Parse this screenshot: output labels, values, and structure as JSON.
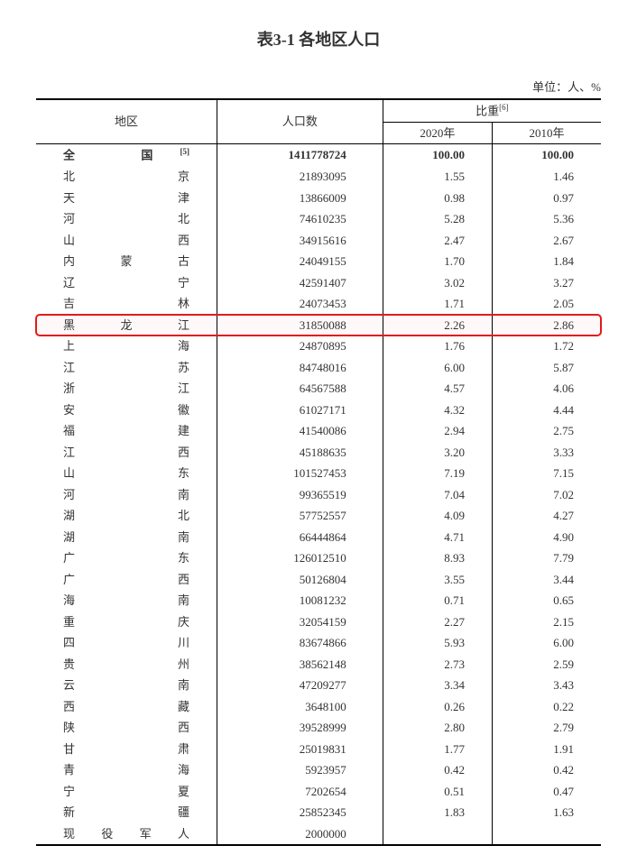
{
  "title": "表3-1 各地区人口",
  "unit_label": "单位：人、%",
  "headers": {
    "region": "地区",
    "population": "人口数",
    "proportion": "比重",
    "proportion_sup": "[6]",
    "year2020": "2020年",
    "year2010": "2010年"
  },
  "national": {
    "region": "全　国",
    "region_sup": "[5]",
    "population": "1411778724",
    "p2020": "100.00",
    "p2010": "100.00"
  },
  "highlight_region": "黑龙江",
  "rows": [
    {
      "region": "北　京",
      "population": "21893095",
      "p2020": "1.55",
      "p2010": "1.46"
    },
    {
      "region": "天　津",
      "population": "13866009",
      "p2020": "0.98",
      "p2010": "0.97"
    },
    {
      "region": "河　北",
      "population": "74610235",
      "p2020": "5.28",
      "p2010": "5.36"
    },
    {
      "region": "山　西",
      "population": "34915616",
      "p2020": "2.47",
      "p2010": "2.67"
    },
    {
      "region": "内蒙古",
      "population": "24049155",
      "p2020": "1.70",
      "p2010": "1.84"
    },
    {
      "region": "辽　宁",
      "population": "42591407",
      "p2020": "3.02",
      "p2010": "3.27"
    },
    {
      "region": "吉　林",
      "population": "24073453",
      "p2020": "1.71",
      "p2010": "2.05"
    },
    {
      "region": "黑龙江",
      "population": "31850088",
      "p2020": "2.26",
      "p2010": "2.86"
    },
    {
      "region": "上　海",
      "population": "24870895",
      "p2020": "1.76",
      "p2010": "1.72"
    },
    {
      "region": "江　苏",
      "population": "84748016",
      "p2020": "6.00",
      "p2010": "5.87"
    },
    {
      "region": "浙　江",
      "population": "64567588",
      "p2020": "4.57",
      "p2010": "4.06"
    },
    {
      "region": "安　徽",
      "population": "61027171",
      "p2020": "4.32",
      "p2010": "4.44"
    },
    {
      "region": "福　建",
      "population": "41540086",
      "p2020": "2.94",
      "p2010": "2.75"
    },
    {
      "region": "江　西",
      "population": "45188635",
      "p2020": "3.20",
      "p2010": "3.33"
    },
    {
      "region": "山　东",
      "population": "101527453",
      "p2020": "7.19",
      "p2010": "7.15"
    },
    {
      "region": "河　南",
      "population": "99365519",
      "p2020": "7.04",
      "p2010": "7.02"
    },
    {
      "region": "湖　北",
      "population": "57752557",
      "p2020": "4.09",
      "p2010": "4.27"
    },
    {
      "region": "湖　南",
      "population": "66444864",
      "p2020": "4.71",
      "p2010": "4.90"
    },
    {
      "region": "广　东",
      "population": "126012510",
      "p2020": "8.93",
      "p2010": "7.79"
    },
    {
      "region": "广　西",
      "population": "50126804",
      "p2020": "3.55",
      "p2010": "3.44"
    },
    {
      "region": "海　南",
      "population": "10081232",
      "p2020": "0.71",
      "p2010": "0.65"
    },
    {
      "region": "重　庆",
      "population": "32054159",
      "p2020": "2.27",
      "p2010": "2.15"
    },
    {
      "region": "四　川",
      "population": "83674866",
      "p2020": "5.93",
      "p2010": "6.00"
    },
    {
      "region": "贵　州",
      "population": "38562148",
      "p2020": "2.73",
      "p2010": "2.59"
    },
    {
      "region": "云　南",
      "population": "47209277",
      "p2020": "3.34",
      "p2010": "3.43"
    },
    {
      "region": "西　藏",
      "population": "3648100",
      "p2020": "0.26",
      "p2010": "0.22"
    },
    {
      "region": "陕　西",
      "population": "39528999",
      "p2020": "2.80",
      "p2010": "2.79"
    },
    {
      "region": "甘　肃",
      "population": "25019831",
      "p2020": "1.77",
      "p2010": "1.91"
    },
    {
      "region": "青　海",
      "population": "5923957",
      "p2020": "0.42",
      "p2010": "0.42"
    },
    {
      "region": "宁　夏",
      "population": "7202654",
      "p2020": "0.51",
      "p2010": "0.47"
    },
    {
      "region": "新　疆",
      "population": "25852345",
      "p2020": "1.83",
      "p2010": "1.63"
    },
    {
      "region": "现役军人",
      "population": "2000000",
      "p2020": "",
      "p2010": ""
    }
  ],
  "style": {
    "highlight_color": "#e11b1b",
    "text_color": "#333333",
    "background": "#ffffff"
  }
}
